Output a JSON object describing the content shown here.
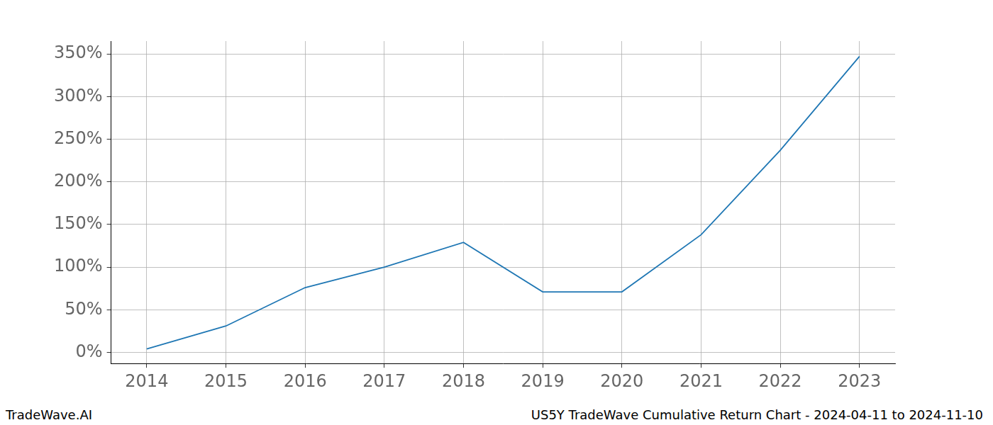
{
  "chart_data": {
    "type": "line",
    "title": "US5Y TradeWave Cumulative Return Chart - 2024-04-11 to 2024-11-10",
    "annotations": [
      "TradeWave.AI"
    ],
    "x": [
      2014,
      2015,
      2016,
      2017,
      2018,
      2019,
      2020,
      2021,
      2022,
      2023
    ],
    "values": [
      4,
      31,
      76,
      100,
      129,
      71,
      71,
      138,
      237,
      347
    ],
    "color": "#1f77b4",
    "xlim": [
      2013.55,
      2023.45
    ],
    "xticks": [
      2014,
      2015,
      2016,
      2017,
      2018,
      2019,
      2020,
      2021,
      2022,
      2023
    ],
    "ylim": [
      -13,
      365
    ],
    "yticks": [
      {
        "value": 0,
        "label": "0%"
      },
      {
        "value": 50,
        "label": "50%"
      },
      {
        "value": 100,
        "label": "100%"
      },
      {
        "value": 150,
        "label": "150%"
      },
      {
        "value": 200,
        "label": "200%"
      },
      {
        "value": 250,
        "label": "250%"
      },
      {
        "value": 300,
        "label": "300%"
      },
      {
        "value": 350,
        "label": "350%"
      }
    ],
    "grid": true
  }
}
